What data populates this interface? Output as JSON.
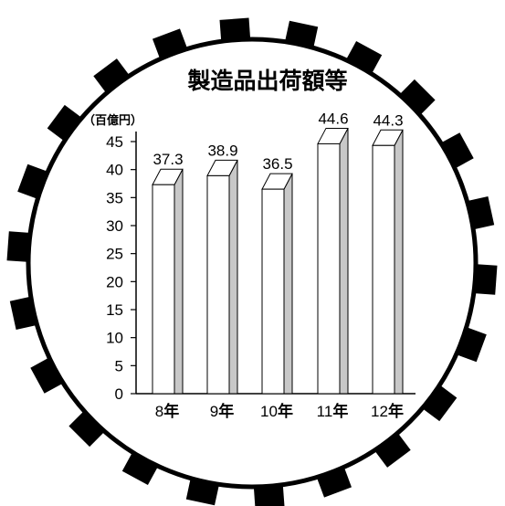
{
  "chart_data": {
    "type": "bar",
    "title": "製造品出荷額等",
    "ylabel": "（百億円）",
    "ylim": [
      0,
      45
    ],
    "yticks": [
      0,
      5,
      10,
      15,
      20,
      25,
      30,
      35,
      40,
      45
    ],
    "categories": [
      {
        "num": "8",
        "suffix": "年"
      },
      {
        "num": "9",
        "suffix": "年"
      },
      {
        "num": "10",
        "suffix": "年"
      },
      {
        "num": "11",
        "suffix": "年"
      },
      {
        "num": "12",
        "suffix": "年"
      }
    ],
    "values": [
      37.3,
      38.9,
      36.5,
      44.6,
      44.3
    ],
    "value_labels": [
      "37.3",
      "38.9",
      "36.5",
      "44.6",
      "44.3"
    ],
    "grid": false,
    "style": "3d-bar",
    "colors": {
      "bar_front": "#ffffff",
      "bar_side": "#c8c8c8",
      "bar_top": "#ffffff",
      "stroke": "#000000",
      "gear": "#000000"
    }
  }
}
